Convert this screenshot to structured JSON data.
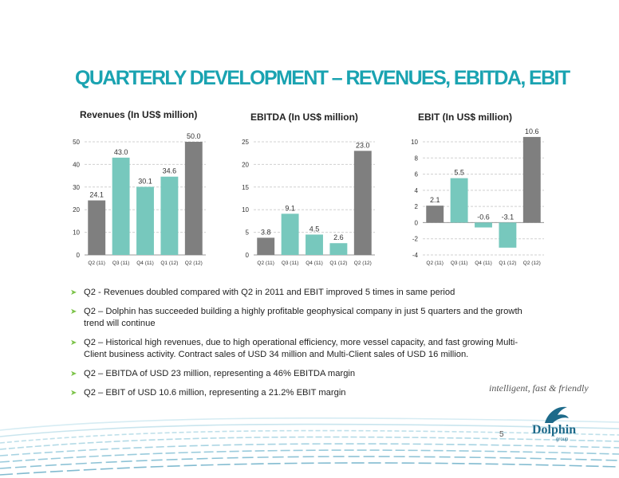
{
  "title": "QUARTERLY DEVELOPMENT – REVENUES, EBITDA, EBIT",
  "colors": {
    "grey": "#7f7f7f",
    "teal": "#77c8bd",
    "accent": "#1aa3b1",
    "bullet": "#7cc349"
  },
  "chart_data": [
    {
      "type": "bar",
      "title": "Revenues (In US$ million)",
      "categories": [
        "Q2 (11)",
        "Q3 (11)",
        "Q4 (11)",
        "Q1 (12)",
        "Q2 (12)"
      ],
      "values": [
        24.1,
        43.0,
        30.1,
        34.6,
        50.0
      ],
      "value_labels": [
        "24.1",
        "43.0",
        "30.1",
        "34.6",
        "50.0"
      ],
      "bar_colors": [
        "grey",
        "teal",
        "teal",
        "teal",
        "grey"
      ],
      "ylim": [
        0,
        50
      ],
      "yticks": [
        "0",
        "10",
        "20",
        "30",
        "40",
        "50"
      ],
      "grid": true,
      "xlabel": "",
      "ylabel": ""
    },
    {
      "type": "bar",
      "title": "EBITDA (In US$ million)",
      "categories": [
        "Q2 (11)",
        "Q3 (11)",
        "Q4 (11)",
        "Q1 (12)",
        "Q2 (12)"
      ],
      "values": [
        3.8,
        9.1,
        4.5,
        2.6,
        23.0
      ],
      "value_labels": [
        "3.8",
        "9.1",
        "4.5",
        "2.6",
        "23.0"
      ],
      "bar_colors": [
        "grey",
        "teal",
        "teal",
        "teal",
        "grey"
      ],
      "ylim": [
        0,
        25
      ],
      "yticks": [
        "0",
        "5",
        "10",
        "15",
        "20",
        "25"
      ],
      "grid": true,
      "xlabel": "",
      "ylabel": ""
    },
    {
      "type": "bar",
      "title": "EBIT (In US$ million)",
      "categories": [
        "Q2 (11)",
        "Q3 (11)",
        "Q4 (11)",
        "Q1 (12)",
        "Q2 (12)"
      ],
      "values": [
        2.1,
        5.5,
        -0.6,
        -3.1,
        10.6
      ],
      "value_labels": [
        "2.1",
        "5.5",
        "-0.6",
        "-3.1",
        "10.6"
      ],
      "bar_colors": [
        "grey",
        "teal",
        "teal",
        "teal",
        "grey"
      ],
      "ylim": [
        -4,
        10
      ],
      "yticks": [
        "-4",
        "-2",
        "0",
        "2",
        "4",
        "6",
        "8",
        "10"
      ],
      "grid": true,
      "xlabel": "",
      "ylabel": ""
    }
  ],
  "bullets": [
    "Q2 - Revenues doubled compared with Q2 in 2011 and EBIT improved 5 times in same period",
    "Q2 – Dolphin has succeeded building a highly profitable geophysical company in just 5 quarters and the growth trend will continue",
    "Q2 – Historical high revenues, due to high operational efficiency, more vessel capacity, and fast growing Multi-Client business activity. Contract sales of USD 34 million and Multi-Client sales of USD 16 million.",
    "Q2 – EBITDA of USD 23 million, representing a 46% EBITDA margin",
    "Q2 – EBIT of USD 10.6 million, representing  a 21.2% EBIT margin"
  ],
  "bullet_icon": "arrow-bullet-icon",
  "tagline": "intelligent, fast & friendly",
  "page_number": "5",
  "logo": {
    "name": "Dolphin",
    "sub": "group",
    "icon": "dolphin-logo-icon"
  }
}
